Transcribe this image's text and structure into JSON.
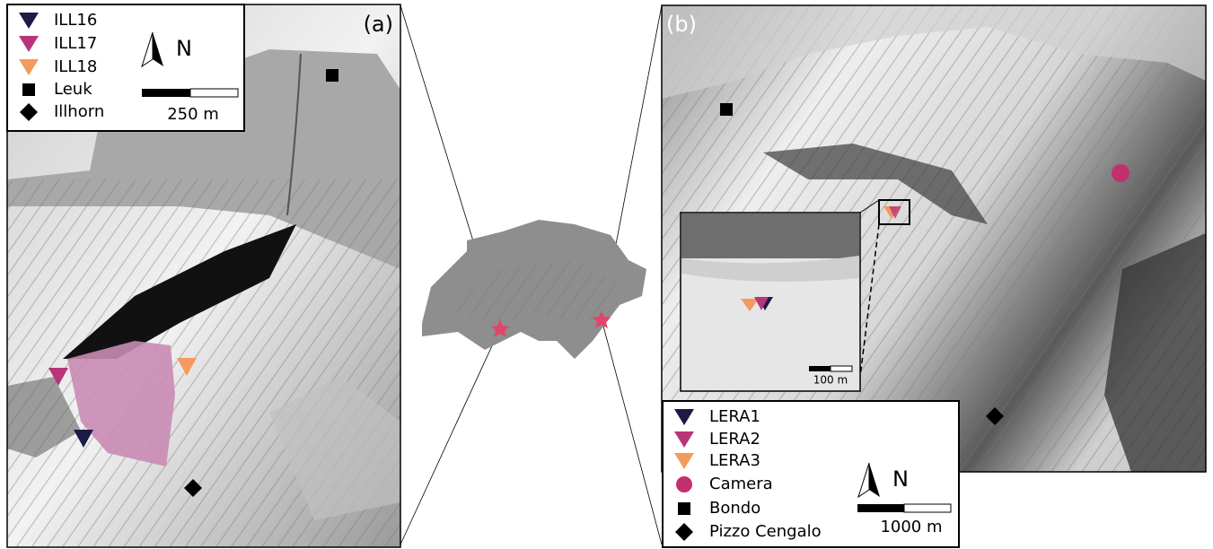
{
  "panel_a": {
    "label": "(a)",
    "legend": [
      "ILL16",
      "ILL17",
      "ILL18",
      "Leuk",
      "Illhorn"
    ],
    "north": "N",
    "scale": "250 m"
  },
  "panel_b": {
    "label": "(b)",
    "legend": [
      "LERA1",
      "LERA2",
      "LERA3",
      "Camera",
      "Bondo",
      "Pizzo Cengalo"
    ],
    "north": "N",
    "scale": "1000 m",
    "inset_scale": "100 m"
  }
}
